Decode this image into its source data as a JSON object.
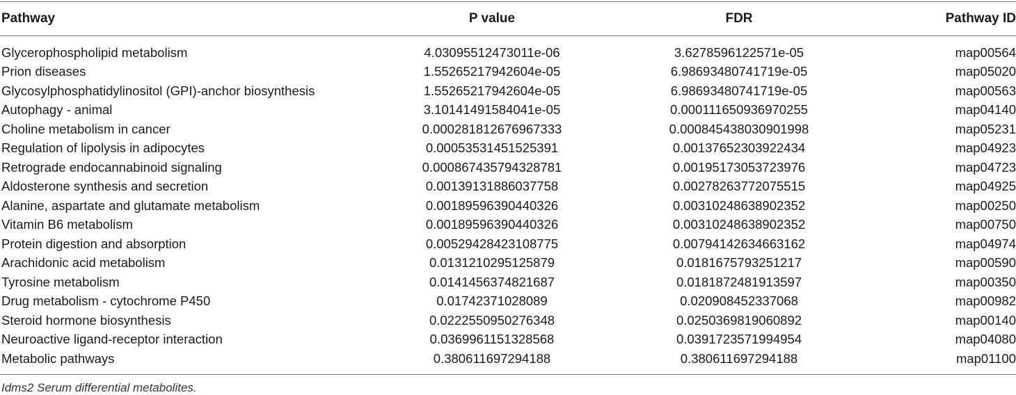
{
  "table": {
    "columns": [
      "Pathway",
      "P value",
      "FDR",
      "Pathway ID"
    ],
    "rows": [
      [
        "Glycerophospholipid metabolism",
        "4.03095512473011e-06",
        "3.6278596122571e-05",
        "map00564"
      ],
      [
        "Prion diseases",
        "1.55265217942604e-05",
        "6.98693480741719e-05",
        "map05020"
      ],
      [
        "Glycosylphosphatidylinositol (GPI)-anchor biosynthesis",
        "1.55265217942604e-05",
        "6.98693480741719e-05",
        "map00563"
      ],
      [
        "Autophagy - animal",
        "3.10141491584041e-05",
        "0.000111650936970255",
        "map04140"
      ],
      [
        "Choline metabolism in cancer",
        "0.000281812676967333",
        "0.000845438030901998",
        "map05231"
      ],
      [
        "Regulation of lipolysis in adipocytes",
        "0.00053531451525391",
        "0.00137652303922434",
        "map04923"
      ],
      [
        "Retrograde endocannabinoid signaling",
        "0.000867435794328781",
        "0.00195173053723976",
        "map04723"
      ],
      [
        "Aldosterone synthesis and secretion",
        "0.00139131886037758",
        "0.00278263772075515",
        "map04925"
      ],
      [
        "Alanine, aspartate and glutamate metabolism",
        "0.00189596390440326",
        "0.00310248638902352",
        "map00250"
      ],
      [
        "Vitamin B6 metabolism",
        "0.00189596390440326",
        "0.00310248638902352",
        "map00750"
      ],
      [
        "Protein digestion and absorption",
        "0.00529428423108775",
        "0.00794142634663162",
        "map04974"
      ],
      [
        "Arachidonic acid metabolism",
        "0.0131210295125879",
        "0.0181675793251217",
        "map00590"
      ],
      [
        "Tyrosine metabolism",
        "0.0141456374821687",
        "0.0181872481913597",
        "map00350"
      ],
      [
        "Drug metabolism - cytochrome P450",
        "0.01742371028089",
        "0.020908452337068",
        "map00982"
      ],
      [
        "Steroid hormone biosynthesis",
        "0.0222550950276348",
        "0.0250369819060892",
        "map00140"
      ],
      [
        "Neuroactive ligand-receptor interaction",
        "0.0369961151328568",
        "0.0391723571994954",
        "map04080"
      ],
      [
        "Metabolic pathways",
        "0.380611697294188",
        "0.380611697294188",
        "map01100"
      ]
    ]
  },
  "footnote": "Idms2 Serum differential metabolites."
}
